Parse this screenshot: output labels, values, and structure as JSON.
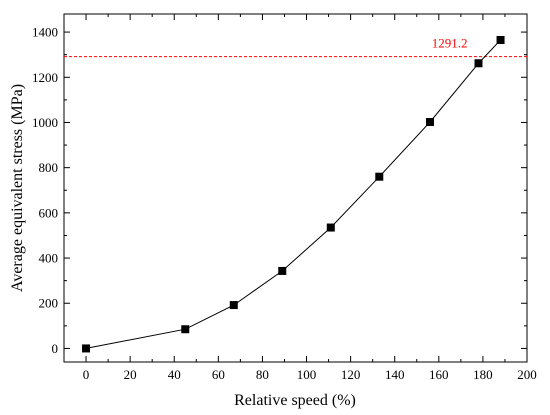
{
  "chart_data": {
    "type": "scatter",
    "xlabel": "Relative speed (%)",
    "ylabel": "Average equivalent stress (MPa)",
    "xlim": [
      -10,
      200
    ],
    "ylim": [
      -60,
      1480
    ],
    "xticks": [
      0,
      20,
      40,
      60,
      80,
      100,
      120,
      140,
      160,
      180,
      200
    ],
    "yticks": [
      0,
      200,
      400,
      600,
      800,
      1000,
      1200,
      1400
    ],
    "grid": false,
    "series": [
      {
        "x": [
          0,
          45,
          67,
          89,
          111,
          133,
          156,
          178,
          188
        ],
        "y": [
          0,
          85,
          192,
          343,
          535,
          760,
          1002,
          1262,
          1365
        ],
        "marker": "square",
        "line": true,
        "color": "#000000"
      }
    ],
    "reference_line": {
      "y": 1291.2,
      "label": "1291.2",
      "color": "#ff0000",
      "style": "dashed"
    }
  }
}
